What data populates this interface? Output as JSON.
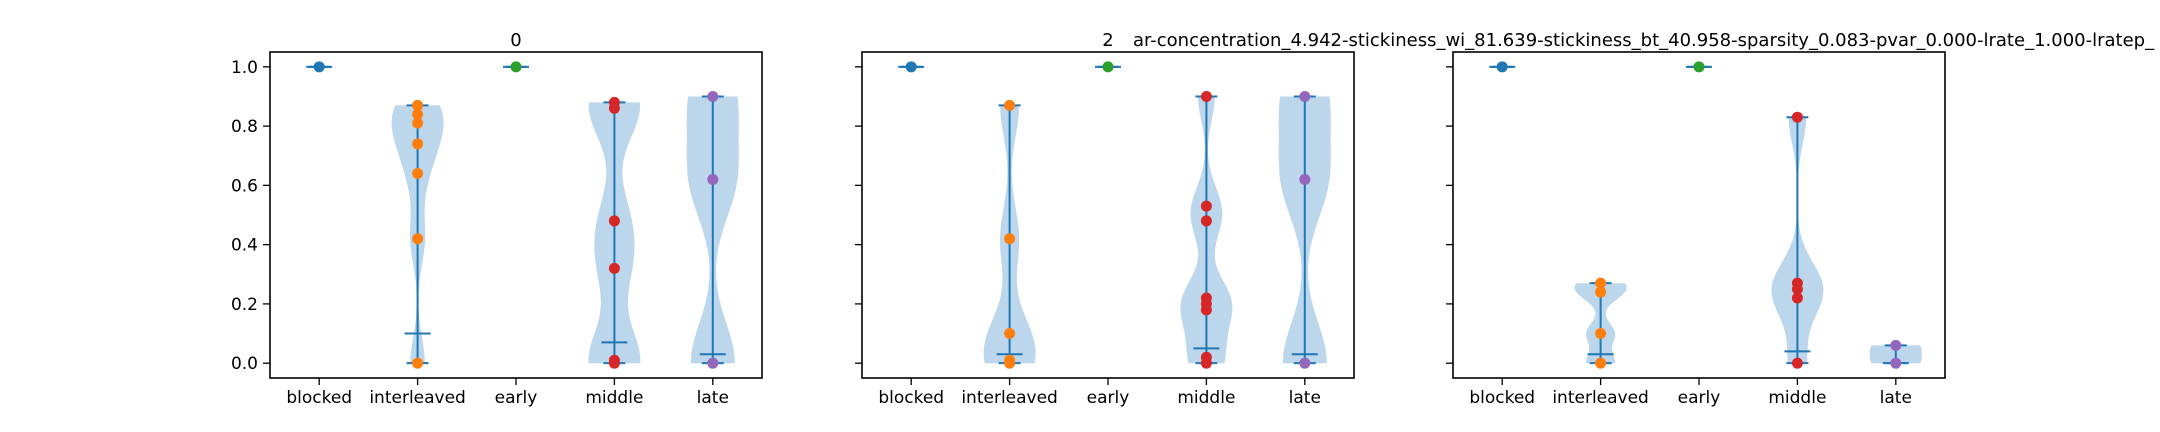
{
  "panel_titles": [
    "0",
    "2",
    "ar-concentration_4.942-stickiness_wi_81.639-stickiness_bt_40.958-sparsity_0.083-pvar_0.000-lrate_1.000-lratep_"
  ],
  "colors": {
    "blocked": "#1f77b4",
    "interleaved": "#ff7f0e",
    "early": "#2ca02c",
    "middle": "#d62728",
    "late": "#9467bd",
    "violin_body": "#a6c8e4",
    "stem": "#1f77b4"
  },
  "chart_data": [
    {
      "type": "violin",
      "title": "0",
      "categories": [
        "blocked",
        "interleaved",
        "early",
        "middle",
        "late"
      ],
      "yticks": [
        "0.0",
        "0.2",
        "0.4",
        "0.6",
        "0.8",
        "1.0"
      ],
      "ylim": [
        -0.05,
        1.05
      ],
      "series": [
        {
          "category": "blocked",
          "min": 1.0,
          "max": 1.0,
          "median": 1.0,
          "points": [
            1.0
          ]
        },
        {
          "category": "interleaved",
          "min": 0.0,
          "max": 0.87,
          "median": 0.1,
          "points": [
            0.87,
            0.84,
            0.81,
            0.74,
            0.64,
            0.42,
            0.0
          ]
        },
        {
          "category": "early",
          "min": 1.0,
          "max": 1.0,
          "median": 1.0,
          "points": [
            1.0
          ]
        },
        {
          "category": "middle",
          "min": 0.0,
          "max": 0.88,
          "median": 0.07,
          "points": [
            0.88,
            0.86,
            0.48,
            0.32,
            0.01,
            0.0
          ]
        },
        {
          "category": "late",
          "min": 0.0,
          "max": 0.9,
          "median": 0.03,
          "points": [
            0.9,
            0.62,
            0.0
          ]
        }
      ]
    },
    {
      "type": "violin",
      "title": "2",
      "categories": [
        "blocked",
        "interleaved",
        "early",
        "middle",
        "late"
      ],
      "yticks": [
        "0.0",
        "0.2",
        "0.4",
        "0.6",
        "0.8",
        "1.0"
      ],
      "ylim": [
        -0.05,
        1.05
      ],
      "series": [
        {
          "category": "blocked",
          "min": 1.0,
          "max": 1.0,
          "median": 1.0,
          "points": [
            1.0
          ]
        },
        {
          "category": "interleaved",
          "min": 0.0,
          "max": 0.87,
          "median": 0.03,
          "points": [
            0.87,
            0.42,
            0.1,
            0.01,
            0.0
          ]
        },
        {
          "category": "early",
          "min": 1.0,
          "max": 1.0,
          "median": 1.0,
          "points": [
            1.0
          ]
        },
        {
          "category": "middle",
          "min": 0.0,
          "max": 0.9,
          "median": 0.05,
          "points": [
            0.9,
            0.53,
            0.48,
            0.22,
            0.2,
            0.18,
            0.02,
            0.0
          ]
        },
        {
          "category": "late",
          "min": 0.0,
          "max": 0.9,
          "median": 0.03,
          "points": [
            0.9,
            0.62,
            0.0
          ]
        }
      ]
    },
    {
      "type": "violin",
      "title": "ar-concentration_4.942-stickiness_wi_81.639-stickiness_bt_40.958-sparsity_0.083-pvar_0.000-lrate_1.000-lratep_",
      "categories": [
        "blocked",
        "interleaved",
        "early",
        "middle",
        "late"
      ],
      "yticks": [
        "0.0",
        "0.2",
        "0.4",
        "0.6",
        "0.8",
        "1.0"
      ],
      "ylim": [
        -0.05,
        1.05
      ],
      "series": [
        {
          "category": "blocked",
          "min": 1.0,
          "max": 1.0,
          "median": 1.0,
          "points": [
            1.0
          ]
        },
        {
          "category": "interleaved",
          "min": 0.0,
          "max": 0.27,
          "median": 0.03,
          "points": [
            0.27,
            0.24,
            0.1,
            0.0
          ]
        },
        {
          "category": "early",
          "min": 1.0,
          "max": 1.0,
          "median": 1.0,
          "points": [
            1.0
          ]
        },
        {
          "category": "middle",
          "min": 0.0,
          "max": 0.83,
          "median": 0.04,
          "points": [
            0.83,
            0.27,
            0.25,
            0.22,
            0.0
          ]
        },
        {
          "category": "late",
          "min": 0.0,
          "max": 0.06,
          "median": 0.0,
          "points": [
            0.06,
            0.0
          ]
        }
      ]
    }
  ]
}
